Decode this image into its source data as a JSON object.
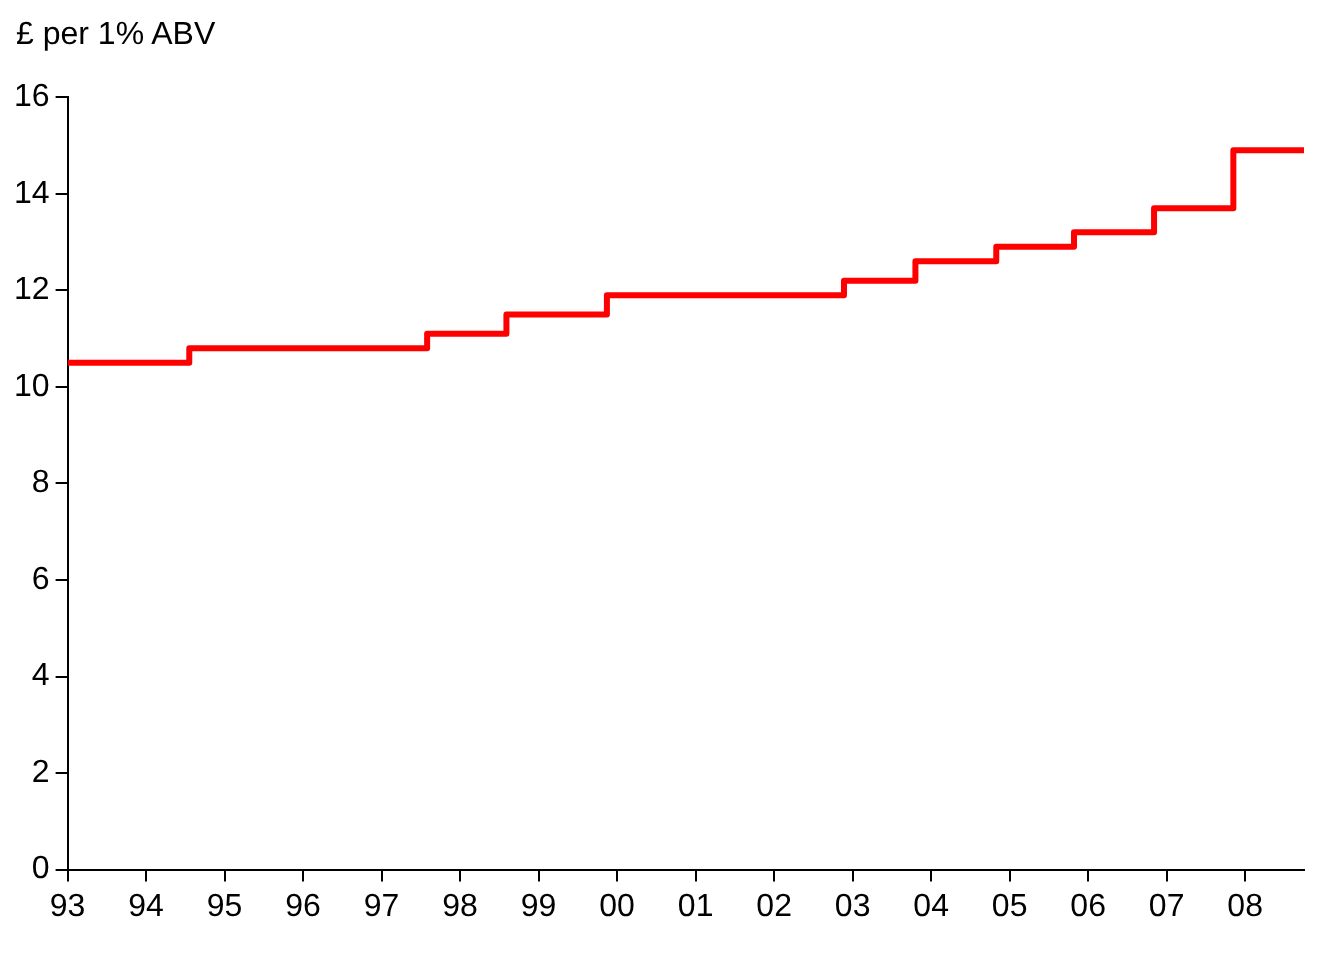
{
  "chart_data": {
    "type": "step",
    "ylabel": "£ per 1% ABV",
    "x": [
      1993,
      1994.55,
      1997.58,
      1998.59,
      1999.87,
      2002.89,
      2003.8,
      2004.83,
      2005.82,
      2006.84,
      2007.85,
      2008.75
    ],
    "series": [
      {
        "color": "#ff0000",
        "values": [
          10.5,
          10.8,
          11.1,
          11.5,
          11.9,
          12.2,
          12.6,
          12.9,
          13.2,
          13.7,
          14.9,
          14.9
        ]
      }
    ],
    "xlim": [
      1993,
      2008.75
    ],
    "xticks": [
      {
        "value": 1993,
        "label": "93"
      },
      {
        "value": 1994,
        "label": "94"
      },
      {
        "value": 1995,
        "label": "95"
      },
      {
        "value": 1996,
        "label": "96"
      },
      {
        "value": 1997,
        "label": "97"
      },
      {
        "value": 1998,
        "label": "98"
      },
      {
        "value": 1999,
        "label": "99"
      },
      {
        "value": 2000,
        "label": "00"
      },
      {
        "value": 2001,
        "label": "01"
      },
      {
        "value": 2002,
        "label": "02"
      },
      {
        "value": 2003,
        "label": "03"
      },
      {
        "value": 2004,
        "label": "04"
      },
      {
        "value": 2005,
        "label": "05"
      },
      {
        "value": 2006,
        "label": "06"
      },
      {
        "value": 2007,
        "label": "07"
      },
      {
        "value": 2008,
        "label": "08"
      }
    ],
    "ylim": [
      0,
      16
    ],
    "yticks": [
      0,
      2,
      4,
      6,
      8,
      10,
      12,
      14,
      16
    ],
    "grid": false,
    "legend": false,
    "marker": "none",
    "line_style": "solid"
  }
}
